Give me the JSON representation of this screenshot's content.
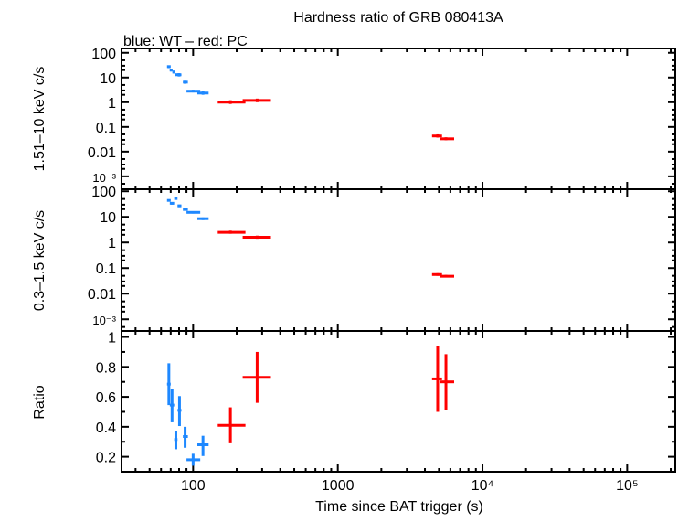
{
  "chart_data": [
    {
      "type": "scatter",
      "title": "Hardness ratio of GRB 080413A",
      "subtitle": "blue: WT – red: PC",
      "ylabel": "1.51–10 keV c/s",
      "yscale": "log",
      "ylim": [
        0.0003,
        150
      ],
      "yticks": [
        "100",
        "10",
        "1",
        "0.1",
        "0.01",
        "10⁻³"
      ],
      "series": [
        {
          "color": "#1e88ff",
          "points": [
            [
              68,
              66,
              70,
              27.7,
              24,
              31
            ],
            [
              70.5,
              69,
              72,
              20,
              17.5,
              22.5
            ],
            [
              73.6,
              72,
              75,
              16.7,
              14.5,
              19
            ],
            [
              77,
              75,
              79,
              13,
              11.5,
              14.5
            ],
            [
              80,
              78,
              83,
              12.9,
              11,
              15
            ],
            [
              88,
              85,
              92,
              6.5,
              5.6,
              7.4
            ],
            [
              100,
              90,
              112,
              2.8,
              2.5,
              3.2
            ],
            [
              117,
              107,
              128,
              2.35,
              2.0,
              2.8
            ]
          ]
        },
        {
          "color": "#ff0000",
          "points": [
            [
              181,
              148,
              230,
              1.0,
              0.85,
              1.2
            ],
            [
              277,
              220,
              345,
              1.18,
              1.0,
              1.4
            ],
            [
              4900,
              4480,
              5250,
              0.043,
              0.037,
              0.05
            ],
            [
              5590,
              5120,
              6370,
              0.033,
              0.029,
              0.038
            ]
          ]
        }
      ]
    },
    {
      "type": "scatter",
      "ylabel": "0.3–1.5 keV c/s",
      "yscale": "log",
      "ylim": [
        0.00035,
        120
      ],
      "yticks": [
        "100",
        "10",
        "1",
        "0.1",
        "0.01",
        "10⁻³"
      ],
      "series": [
        {
          "color": "#1e88ff",
          "points": [
            [
              68,
              66,
              70,
              44,
              40,
              48
            ],
            [
              71.5,
              69,
              74,
              34,
              30,
              38
            ],
            [
              76,
              74,
              78,
              52,
              47,
              57
            ],
            [
              80.5,
              78,
              83,
              27,
              24,
              30
            ],
            [
              88,
              85,
              92,
              19.4,
              17.5,
              21.5
            ],
            [
              100,
              90,
              112,
              15,
              13.5,
              16.5
            ],
            [
              117,
              107,
              128,
              8.5,
              7.5,
              9.5
            ]
          ]
        },
        {
          "color": "#ff0000",
          "points": [
            [
              181,
              148,
              230,
              2.5,
              2.2,
              2.9
            ],
            [
              277,
              220,
              345,
              1.6,
              1.4,
              1.85
            ],
            [
              4900,
              4480,
              5250,
              0.056,
              0.05,
              0.063
            ],
            [
              5590,
              5120,
              6370,
              0.048,
              0.043,
              0.054
            ]
          ]
        }
      ]
    },
    {
      "type": "scatter",
      "ylabel": "Ratio",
      "xlabel": "Time since BAT trigger (s)",
      "xscale": "log",
      "xlim": [
        32,
        215000
      ],
      "xticks": [
        "100",
        "1000",
        "10⁴",
        "10⁵"
      ],
      "yscale": "linear",
      "ylim": [
        0.1,
        1.04
      ],
      "yticks": [
        "1",
        "0.8",
        "0.6",
        "0.4",
        "0.2"
      ],
      "series": [
        {
          "color": "#1e88ff",
          "points": [
            [
              68,
              66,
              70,
              0.685,
              0.545,
              0.824
            ],
            [
              71.5,
              69,
              74,
              0.545,
              0.43,
              0.655
            ],
            [
              76,
              74,
              78,
              0.315,
              0.25,
              0.37
            ],
            [
              80.5,
              78,
              83,
              0.51,
              0.405,
              0.605
            ],
            [
              88,
              85,
              92,
              0.335,
              0.26,
              0.4
            ],
            [
              100,
              90,
              112,
              0.18,
              0.14,
              0.22
            ],
            [
              117,
              107,
              128,
              0.28,
              0.205,
              0.34
            ]
          ]
        },
        {
          "color": "#ff0000",
          "points": [
            [
              181,
              148,
              230,
              0.41,
              0.29,
              0.53
            ],
            [
              277,
              220,
              345,
              0.73,
              0.56,
              0.9
            ],
            [
              4900,
              4480,
              5250,
              0.72,
              0.5,
              0.94
            ],
            [
              5590,
              5120,
              6370,
              0.7,
              0.515,
              0.885
            ]
          ]
        }
      ]
    }
  ]
}
